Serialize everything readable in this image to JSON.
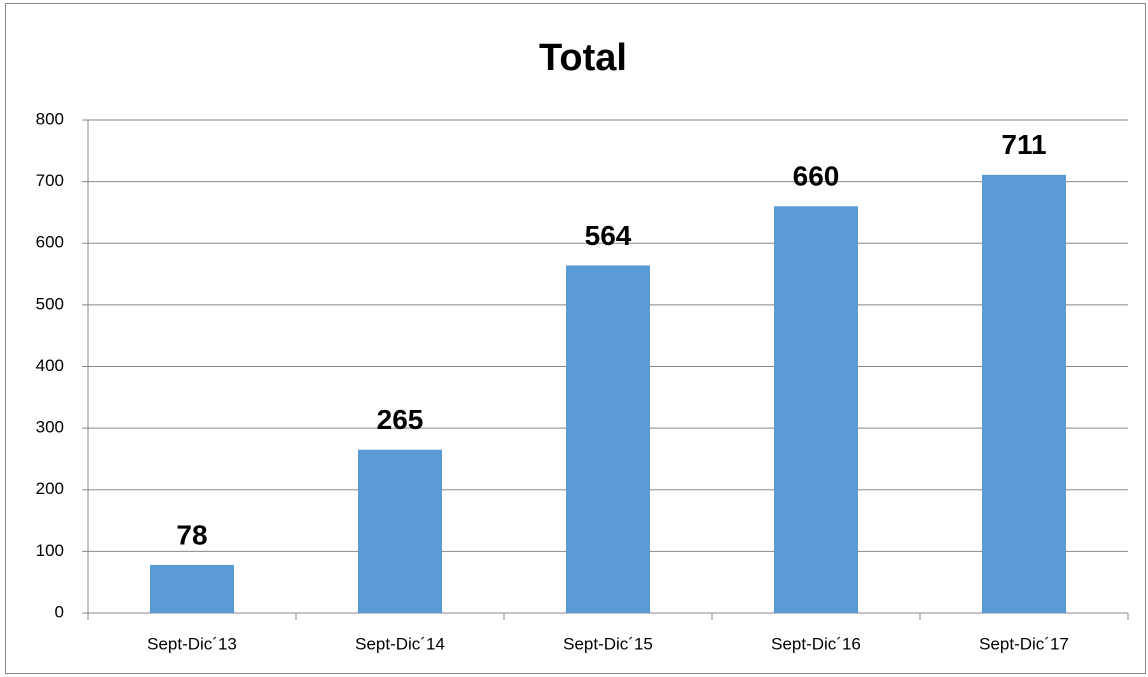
{
  "chart_data": {
    "type": "bar",
    "title": "Total",
    "categories": [
      "Sept-Dic´13",
      "Sept-Dic´14",
      "Sept-Dic´15",
      "Sept-Dic´16",
      "Sept-Dic´17"
    ],
    "values": [
      78,
      265,
      564,
      660,
      711
    ],
    "color": "#5b9bd5",
    "ylim": [
      0,
      800
    ],
    "yticks": [
      0,
      100,
      200,
      300,
      400,
      500,
      600,
      700,
      800
    ],
    "grid": true
  }
}
